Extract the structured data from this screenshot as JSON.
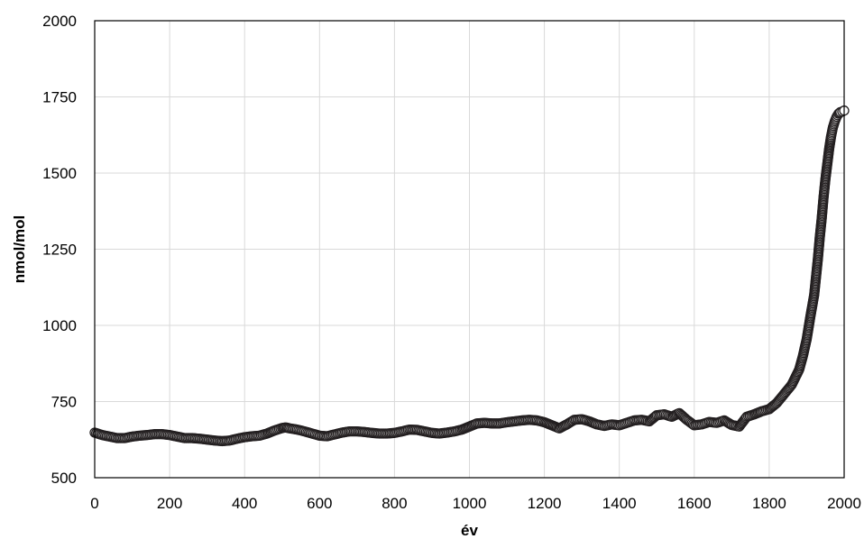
{
  "chart_data": {
    "type": "scatter",
    "title": "",
    "xlabel": "év",
    "ylabel": "nmol/mol",
    "xlim": [
      0,
      2000
    ],
    "ylim": [
      500,
      2000
    ],
    "xticks": [
      0,
      200,
      400,
      600,
      800,
      1000,
      1200,
      1400,
      1600,
      1800,
      2000
    ],
    "yticks": [
      500,
      750,
      1000,
      1250,
      1500,
      1750,
      2000
    ],
    "grid": true,
    "legend": "none",
    "marker_color": "#231f20",
    "series": [
      {
        "marker": "open-circle",
        "x": [
          0,
          20,
          40,
          60,
          80,
          100,
          120,
          140,
          160,
          180,
          200,
          220,
          240,
          260,
          280,
          300,
          320,
          340,
          360,
          380,
          400,
          420,
          440,
          460,
          480,
          500,
          510,
          520,
          540,
          560,
          580,
          600,
          620,
          640,
          660,
          680,
          700,
          720,
          740,
          760,
          780,
          800,
          820,
          840,
          860,
          880,
          900,
          920,
          940,
          960,
          980,
          1000,
          1020,
          1040,
          1060,
          1080,
          1100,
          1120,
          1140,
          1160,
          1180,
          1200,
          1220,
          1240,
          1260,
          1280,
          1300,
          1320,
          1340,
          1360,
          1380,
          1400,
          1420,
          1440,
          1460,
          1480,
          1500,
          1520,
          1540,
          1560,
          1580,
          1600,
          1620,
          1640,
          1660,
          1680,
          1700,
          1720,
          1740,
          1760,
          1780,
          1800,
          1820,
          1840,
          1860,
          1870,
          1880,
          1890,
          1900,
          1910,
          1920,
          1925,
          1930,
          1935,
          1940,
          1945,
          1950,
          1955,
          1960,
          1965,
          1970,
          1975,
          1980,
          1985,
          1990,
          1995,
          2000
        ],
        "y": [
          648,
          640,
          635,
          630,
          630,
          635,
          638,
          640,
          643,
          643,
          640,
          635,
          630,
          630,
          628,
          625,
          622,
          620,
          622,
          628,
          633,
          636,
          638,
          645,
          655,
          663,
          665,
          662,
          658,
          652,
          645,
          638,
          636,
          642,
          648,
          652,
          652,
          650,
          647,
          645,
          645,
          647,
          652,
          658,
          657,
          652,
          647,
          645,
          648,
          652,
          658,
          668,
          678,
          680,
          678,
          678,
          682,
          685,
          688,
          690,
          688,
          682,
          672,
          662,
          675,
          690,
          692,
          685,
          675,
          670,
          675,
          672,
          680,
          688,
          690,
          685,
          705,
          708,
          700,
          712,
          690,
          672,
          675,
          683,
          680,
          688,
          673,
          668,
          700,
          708,
          718,
          725,
          745,
          775,
          805,
          830,
          855,
          900,
          955,
          1030,
          1100,
          1160,
          1220,
          1290,
          1350,
          1420,
          1480,
          1530,
          1580,
          1620,
          1650,
          1670,
          1685,
          1695,
          1700,
          1702,
          1705
        ]
      }
    ]
  }
}
